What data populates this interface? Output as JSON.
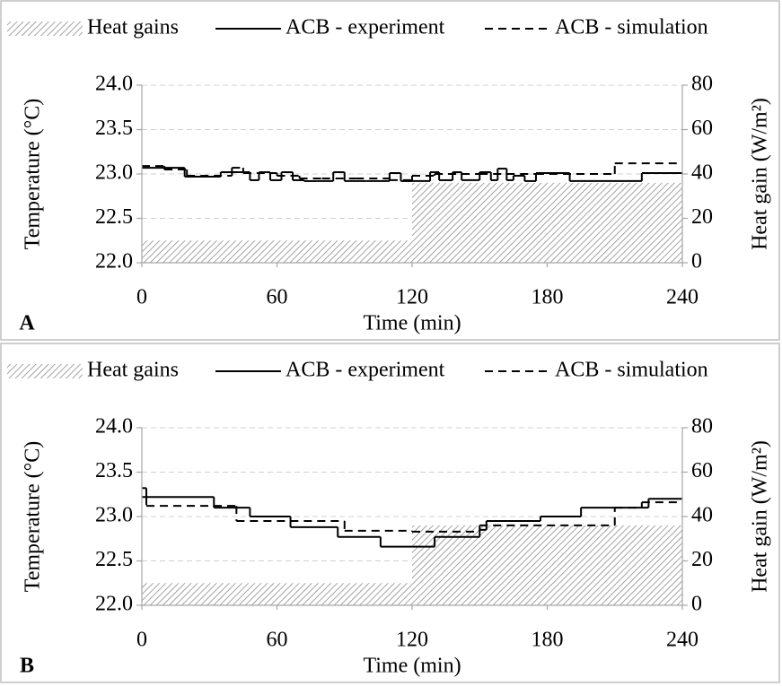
{
  "chart_data": [
    {
      "type": "line",
      "panel_label": "A",
      "xlabel": "Time (min)",
      "ylabel": "Temperature (°C)",
      "y2label": "Heat gain (W/m²)",
      "xlim": [
        0,
        240
      ],
      "xticks": [
        0,
        60,
        120,
        180,
        240
      ],
      "ylim": [
        22,
        24
      ],
      "yticks": [
        {
          "value": 22,
          "label": "22.0"
        },
        {
          "value": 22.5,
          "label": "22.5"
        },
        {
          "value": 23,
          "label": "23.0"
        },
        {
          "value": 23.5,
          "label": "23.5"
        },
        {
          "value": 24,
          "label": "24.0"
        }
      ],
      "y2lim": [
        0,
        80
      ],
      "y2ticks": [
        0,
        20,
        40,
        60,
        80
      ],
      "grid": true,
      "legend": "top",
      "series": [
        {
          "name": "Heat gains",
          "color": "#7f7f7f",
          "style": "hatch",
          "axis": "y2",
          "x": [
            0,
            120,
            120,
            240
          ],
          "values": [
            10,
            10,
            36,
            36
          ]
        },
        {
          "name": "ACB - experiment",
          "color": "#000000",
          "style": "solid",
          "x": [
            0,
            19,
            35,
            48,
            52,
            57,
            62,
            67,
            72,
            78,
            85,
            90,
            100,
            110,
            115,
            120,
            128,
            132,
            138,
            142,
            150,
            155,
            158,
            162,
            165,
            170,
            175,
            190,
            222,
            240
          ],
          "values": [
            23.07,
            22.97,
            23.02,
            22.93,
            23.02,
            22.93,
            23.02,
            22.93,
            22.92,
            22.92,
            23.02,
            22.92,
            22.92,
            23.01,
            22.92,
            22.92,
            23.02,
            22.93,
            23.02,
            22.93,
            23.02,
            22.93,
            23.06,
            22.93,
            22.98,
            22.92,
            23.01,
            22.92,
            23.01,
            23.01
          ]
        },
        {
          "name": "ACB - simulation",
          "color": "#000000",
          "style": "dash",
          "x": [
            0,
            10,
            20,
            40,
            45,
            60,
            70,
            80,
            95,
            110,
            120,
            130,
            150,
            175,
            210,
            240
          ],
          "values": [
            23.09,
            23.05,
            22.98,
            23.07,
            23.01,
            22.98,
            22.95,
            22.95,
            22.95,
            22.93,
            22.98,
            23.0,
            23.0,
            23.0,
            23.12,
            23.12
          ]
        }
      ]
    },
    {
      "type": "line",
      "panel_label": "B",
      "xlabel": "Time (min)",
      "ylabel": "Temperature (°C)",
      "y2label": "Heat gain (W/m²)",
      "xlim": [
        0,
        240
      ],
      "xticks": [
        0,
        60,
        120,
        180,
        240
      ],
      "ylim": [
        22,
        24
      ],
      "yticks": [
        {
          "value": 22,
          "label": "22.0"
        },
        {
          "value": 22.5,
          "label": "22.5"
        },
        {
          "value": 23,
          "label": "23.0"
        },
        {
          "value": 23.5,
          "label": "23.5"
        },
        {
          "value": 24,
          "label": "24.0"
        }
      ],
      "y2lim": [
        0,
        80
      ],
      "y2ticks": [
        0,
        20,
        40,
        60,
        80
      ],
      "grid": true,
      "legend": "top",
      "series": [
        {
          "name": "Heat gains",
          "color": "#7f7f7f",
          "style": "hatch",
          "axis": "y2",
          "x": [
            0,
            120,
            120,
            240
          ],
          "values": [
            10,
            10,
            36,
            36
          ]
        },
        {
          "name": "ACB - experiment",
          "color": "#000000",
          "style": "solid",
          "x": [
            0,
            2,
            32,
            48,
            66,
            87,
            106,
            130,
            150,
            153,
            177,
            195,
            225,
            240
          ],
          "values": [
            23.32,
            23.22,
            23.1,
            23.0,
            22.88,
            22.77,
            22.66,
            22.77,
            22.85,
            22.95,
            23.0,
            23.1,
            23.2,
            23.2
          ]
        },
        {
          "name": "ACB - simulation",
          "color": "#000000",
          "style": "dash",
          "x": [
            0,
            2,
            42,
            90,
            120,
            150,
            210,
            222,
            240
          ],
          "values": [
            23.22,
            23.12,
            22.95,
            22.84,
            22.83,
            22.9,
            23.1,
            23.16,
            23.16
          ]
        }
      ]
    }
  ]
}
